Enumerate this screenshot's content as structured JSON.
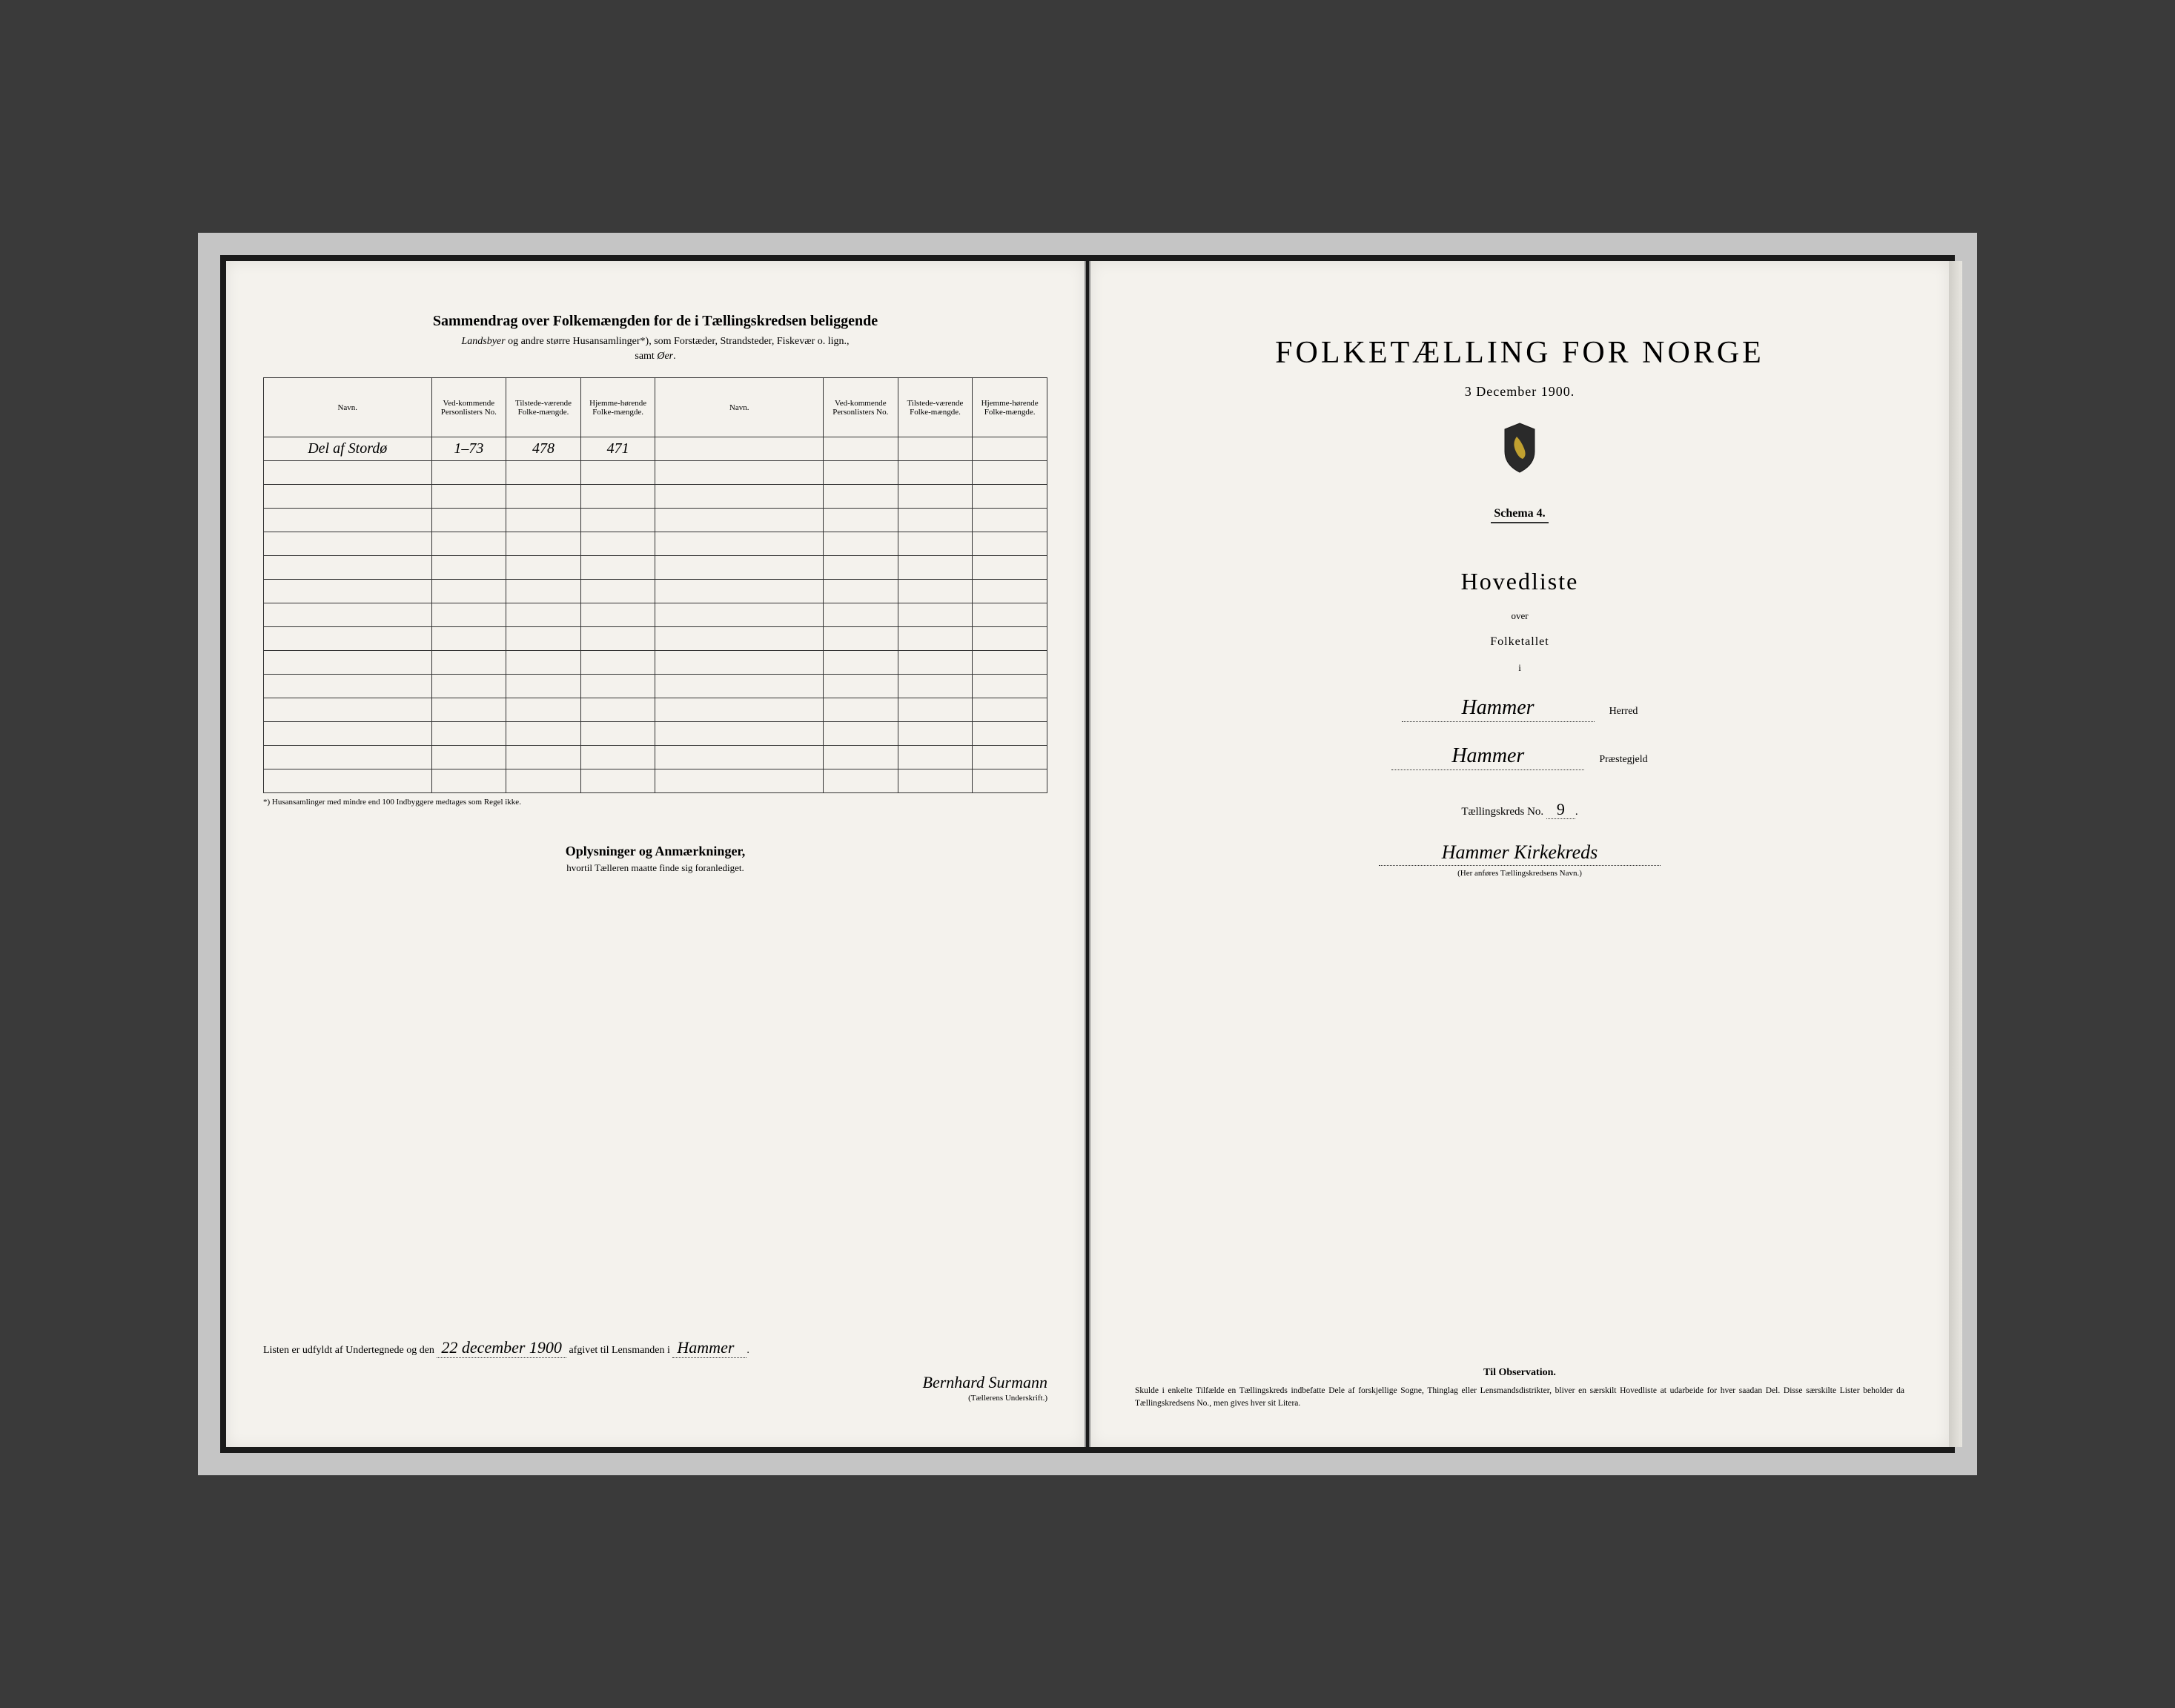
{
  "colors": {
    "page_bg": "#f4f2ed",
    "frame_bg": "#c5c5c5",
    "outer_bg": "#3a3a3a",
    "ink": "#1a1a1a",
    "rule": "#333333"
  },
  "left_page": {
    "title": "Sammendrag over Folkemængden for de i Tællingskredsen beliggende",
    "subtitle_italic": "Landsbyer",
    "subtitle_rest": " og andre større Husansamlinger*), som Forstæder, Strandsteder, Fiskevær o. lign.,",
    "samt": "samt Øer.",
    "headers": {
      "navn": "Navn.",
      "vedkommende": "Ved-kommende Personlisters No.",
      "tilstede": "Tilstede-værende Folke-mængde.",
      "hjemme": "Hjemme-hørende Folke-mængde."
    },
    "rows": [
      {
        "navn": "Del af Stordø",
        "no": "1–73",
        "tilstede": "478",
        "hjemme": "471"
      }
    ],
    "empty_rows": 14,
    "footnote": "*) Husansamlinger med mindre end 100 Indbyggere medtages som Regel ikke.",
    "oplysninger": "Oplysninger og Anmærkninger,",
    "oplysninger_sub": "hvortil Tælleren maatte finde sig foranlediget.",
    "signature": {
      "prefix": "Listen er udfyldt af Undertegnede og den ",
      "date": "22 december 1900",
      "middle": " afgivet til Lensmanden i ",
      "place": "Hammer",
      "name": "Bernhard Surmann",
      "caption": "(Tællerens Underskrift.)"
    }
  },
  "right_page": {
    "main_title": "FOLKETÆLLING FOR NORGE",
    "date": "3 December 1900.",
    "schema": "Schema 4.",
    "hovedliste": "Hovedliste",
    "over": "over",
    "folketallet": "Folketallet",
    "i": "i",
    "herred_value": "Hammer",
    "herred_label": "Herred",
    "prestegjeld_value": "Hammer",
    "prestegjeld_label": "Præstegjeld",
    "kreds_label": "Tællingskreds No.",
    "kreds_no": "9",
    "kreds_name": "Hammer Kirkekreds",
    "kreds_caption": "(Her anføres Tællingskredsens Navn.)",
    "observation_title": "Til Observation.",
    "observation_text": "Skulde i enkelte Tilfælde en Tællingskreds indbefatte Dele af forskjellige Sogne, Thinglag eller Lensmandsdistrikter, bliver en særskilt Hovedliste at udarbeide for hver saadan Del. Disse særskilte Lister beholder da Tællingskredsens No., men gives hver sit Litera."
  }
}
